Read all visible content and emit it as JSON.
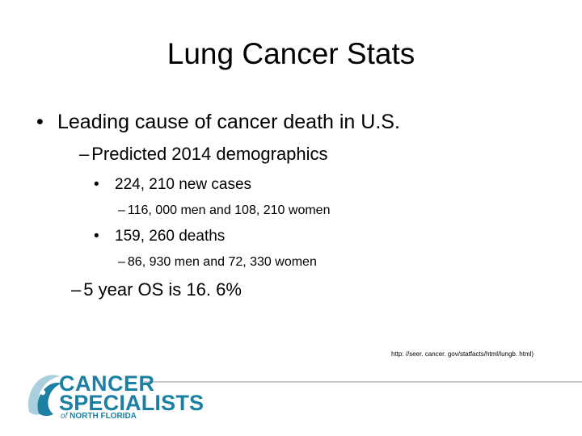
{
  "slide": {
    "title": "Lung Cancer Stats",
    "bullets": [
      {
        "marker": "•",
        "text": "Leading cause of cancer death in U.S."
      },
      {
        "marker": "–",
        "text": "Predicted 2014 demographics"
      },
      {
        "marker": "•",
        "text": "224, 210 new cases"
      },
      {
        "marker": "–",
        "text": "116, 000 men and 108, 210 women"
      },
      {
        "marker": "•",
        "text": "159, 260 deaths"
      },
      {
        "marker": "–",
        "text": "86, 930 men and 72, 330 women"
      },
      {
        "marker": "–",
        "text": "5 year OS is 16. 6%"
      }
    ],
    "source": "http: //seer. cancer. gov/statfacts/html/lungb. html)"
  },
  "logo": {
    "line1": "CANCER",
    "line2": "SPECIALISTS",
    "of": "of",
    "region": "NORTH FLORIDA",
    "icon": "wave-logo-icon",
    "colors": {
      "primary": "#1b80a3",
      "light": "#a9cfdc"
    }
  }
}
